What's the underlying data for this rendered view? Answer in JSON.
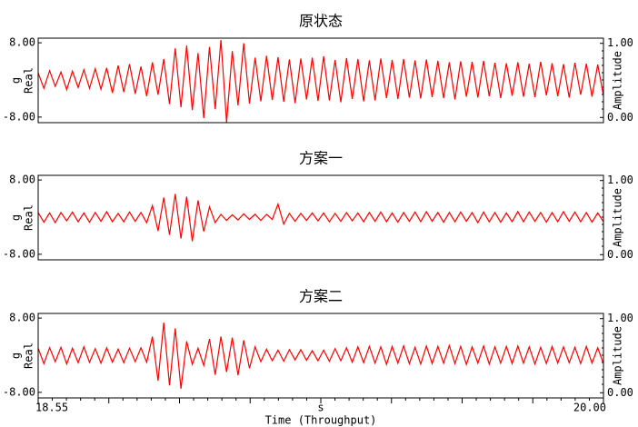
{
  "chart_data": [
    {
      "type": "line",
      "title": "原状态",
      "y_label": "Real",
      "y_unit": "g",
      "y2_label": "Amplitude",
      "color": "#ff0000",
      "xlim": [
        18.55,
        20.0
      ],
      "ylim": [
        -9.2,
        9.0
      ],
      "yticks": [
        {
          "value": 8,
          "label": "8.00"
        },
        {
          "value": -8,
          "label": "-8.00"
        }
      ],
      "y2lim": [
        -0.07,
        1.07
      ],
      "y2ticks": [
        {
          "value": 0,
          "label": "0.00"
        },
        {
          "value": 1,
          "label": "1.00"
        }
      ],
      "values": [
        1.5,
        -1.8,
        2,
        -1.4,
        1.7,
        -2.1,
        1.9,
        -1.6,
        2.2,
        -1.8,
        2.4,
        -2,
        2.6,
        -2.8,
        3.1,
        -2.6,
        3.4,
        -3,
        2.9,
        -3.5,
        3.8,
        -3.2,
        4.5,
        -5.2,
        6.8,
        -5.9,
        7.4,
        -6.5,
        5.8,
        -8.2,
        7.1,
        -6.3,
        8.6,
        -9.1,
        6.2,
        -5.5,
        7.9,
        -5.1,
        4.8,
        -4.6,
        5.2,
        -4.3,
        4.9,
        -4.7,
        4.4,
        -5,
        4.6,
        -4.2,
        4.8,
        -4.5,
        5.1,
        -4.4,
        4.3,
        -4.8,
        4.7,
        -4.1,
        4.5,
        -4.6,
        4.2,
        -4.4,
        4.6,
        -3.9,
        4.3,
        -4.1,
        4.5,
        -3.8,
        4.2,
        -4,
        4.4,
        -3.7,
        4.1,
        -3.9,
        3.8,
        -4.2,
        4,
        -3.6,
        3.9,
        -3.8,
        4.1,
        -3.5,
        3.7,
        -3.9,
        3.6,
        -3.4,
        3.8,
        -3.6,
        3.5,
        -3.7,
        3.9,
        -3.3,
        3.6,
        -3.5,
        3.4,
        -3.8,
        3.7,
        -3.2,
        3.5,
        -3.6,
        3.3,
        -3.4
      ]
    },
    {
      "type": "line",
      "title": "方案一",
      "y_label": "Real",
      "y_unit": "g",
      "y2_label": "Amplitude",
      "color": "#ff0000",
      "xlim": [
        18.55,
        20.0
      ],
      "ylim": [
        -9.2,
        9.0
      ],
      "yticks": [
        {
          "value": 8,
          "label": "8.00"
        },
        {
          "value": -8,
          "label": "-8.00"
        }
      ],
      "y2lim": [
        -0.07,
        1.07
      ],
      "y2ticks": [
        {
          "value": 0,
          "label": "0.00"
        },
        {
          "value": 1,
          "label": "1.00"
        }
      ],
      "values": [
        1,
        -1.1,
        0.9,
        -1.2,
        1,
        -0.8,
        1.1,
        -1,
        0.9,
        -1.1,
        1,
        -0.9,
        1.2,
        -1,
        0.8,
        -1,
        1.1,
        -0.9,
        1,
        -1.2,
        2.5,
        -3,
        4.2,
        -3.8,
        5,
        -4.6,
        4.4,
        -5.2,
        3.6,
        -3.1,
        2.2,
        -1.2,
        0.6,
        -0.7,
        0.5,
        -0.6,
        0.7,
        -0.5,
        0.6,
        -0.7,
        0.6,
        -0.5,
        2.8,
        -1.5,
        0.8,
        -0.9,
        0.8,
        -0.7,
        0.9,
        -0.8,
        0.9,
        -1,
        0.8,
        -0.9,
        1,
        -0.8,
        0.9,
        -1,
        1,
        -0.9,
        1.1,
        -1,
        0.9,
        -1.1,
        1,
        -0.9,
        1.1,
        -1,
        1.2,
        -0.9,
        1,
        -1.1,
        1,
        -1,
        1.1,
        -0.9,
        1,
        -1.2,
        1.1,
        -1,
        1,
        -1.1,
        0.9,
        -1,
        1.2,
        -1,
        1.1,
        -0.9,
        1,
        -1.1,
        1,
        -1,
        1.2,
        -0.9,
        1.1,
        -1,
        1,
        -1.1,
        0.9,
        -1
      ]
    },
    {
      "type": "line",
      "title": "方案二",
      "y_label": "Real",
      "y_unit": "g",
      "y2_label": "Amplitude",
      "color": "#ff0000",
      "xlim": [
        18.55,
        20.0
      ],
      "ylim": [
        -9.2,
        9.0
      ],
      "yticks": [
        {
          "value": 8,
          "label": "8.00"
        },
        {
          "value": -8,
          "label": "-8.00"
        }
      ],
      "y2lim": [
        -0.07,
        1.07
      ],
      "y2ticks": [
        {
          "value": 0,
          "label": "0.00"
        },
        {
          "value": 1,
          "label": "1.00"
        }
      ],
      "xticks": [
        {
          "value": 18.55,
          "label": "18.55"
        },
        {
          "value": 20.0,
          "label": "20.00"
        }
      ],
      "x_unit": "s",
      "x_label": "Time (Throughput)",
      "values": [
        1.5,
        -1.8,
        1.6,
        -1.4,
        1.7,
        -1.9,
        1.5,
        -1.6,
        1.8,
        -1.5,
        1.4,
        -1.7,
        1.6,
        -1.5,
        1.3,
        -1.6,
        1.5,
        -1.4,
        1.6,
        -1.5,
        4,
        -5.5,
        7,
        -6.5,
        5.8,
        -7.2,
        3,
        -2,
        1.5,
        -2.2,
        3.5,
        -4.2,
        4,
        -3.6,
        3.8,
        -4.3,
        3.2,
        -2.8,
        1.8,
        -1.4,
        1.3,
        -1.2,
        1.1,
        -1.3,
        1.2,
        -1,
        1.2,
        -1.1,
        1,
        -1.2,
        1.1,
        -1.3,
        1.4,
        -1.2,
        1.6,
        -1.5,
        1.8,
        -1.6,
        1.9,
        -1.7,
        1.8,
        -2,
        1.9,
        -1.7,
        2,
        -1.8,
        1.7,
        -1.9,
        2,
        -1.8,
        1.9,
        -1.7,
        2.1,
        -1.8,
        1.9,
        -2,
        1.8,
        -1.7,
        2,
        -1.9,
        1.8,
        -1.7,
        1.9,
        -1.8,
        2,
        -1.7,
        1.8,
        -1.9,
        1.7,
        -1.8,
        1.9,
        -1.7,
        1.8,
        -1.6,
        1.7,
        -1.8,
        1.9,
        -1.7,
        1.6,
        -1.8
      ]
    }
  ]
}
